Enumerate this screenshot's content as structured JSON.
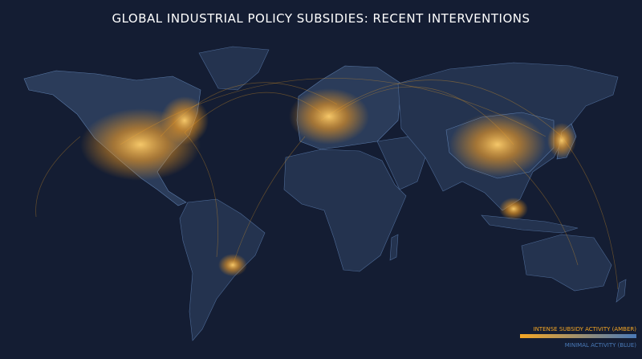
{
  "title": "GLOBAL INDUSTRIAL POLICY SUBSIDIES: RECENT INTERVENTIONS",
  "legend": {
    "items": [
      {
        "label": "INTENSE SUBSIDY ACTIVITY (AMBER)",
        "color": "#f5a623"
      },
      {
        "label": "MINIMAL ACTIVITY (BLUE)",
        "color": "#4a7ab8"
      }
    ]
  }
}
